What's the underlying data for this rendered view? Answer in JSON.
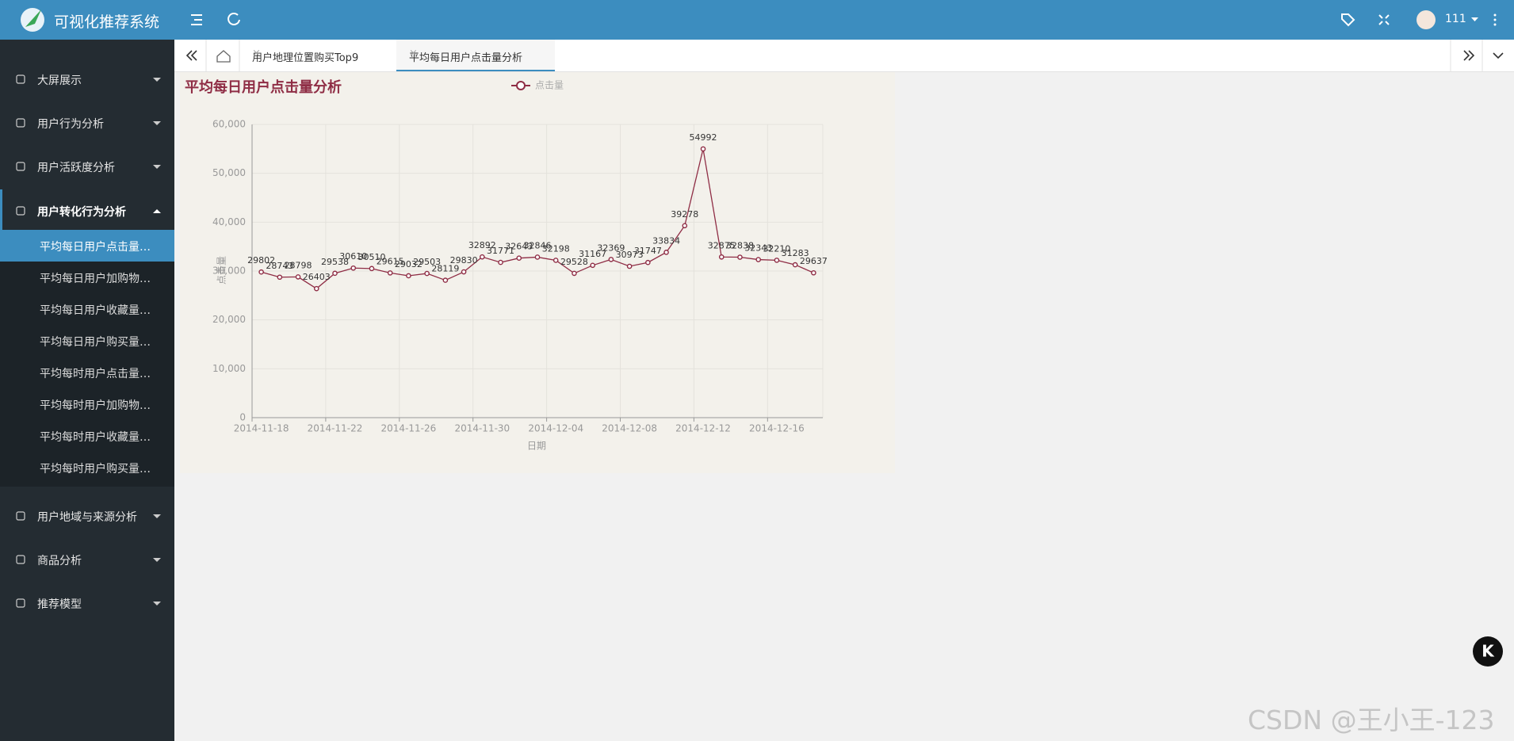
{
  "header": {
    "title": "可视化推荐系统",
    "user": "111"
  },
  "sidebar": {
    "top": [
      "大屏展示",
      "用户行为分析",
      "用户活跃度分析",
      "用户转化行为分析"
    ],
    "submenu": [
      "平均每日用户点击量分析",
      "平均每日用户加购物车量分析",
      "平均每日用户收藏量分析",
      "平均每日用户购买量分析",
      "平均每时用户点击量分析",
      "平均每时用户加购物车量分析",
      "平均每时用户收藏量分析",
      "平均每时用户购买量分析"
    ],
    "bottom": [
      "用户地域与来源分析",
      "商品分析",
      "推荐模型"
    ]
  },
  "tabs": [
    "用户地理位置购买Top9",
    "平均每日用户点击量分析"
  ],
  "watermark": "CSDN @王小王-123",
  "chart_data": {
    "type": "line",
    "title": "平均每日用户点击量分析",
    "x_label": "日期",
    "y_label": "点击量",
    "categories": [
      "2014-11-18",
      null,
      null,
      null,
      "2014-11-22",
      null,
      null,
      null,
      "2014-11-26",
      null,
      null,
      null,
      "2014-11-30",
      null,
      null,
      null,
      "2014-12-04",
      null,
      null,
      null,
      "2014-12-08",
      null,
      null,
      null,
      "2014-12-12",
      null,
      null,
      null,
      "2014-12-16",
      null,
      null
    ],
    "series": [
      {
        "name": "点击量",
        "color": "#8f2d45",
        "values": [
          29802,
          28743,
          28798,
          26403,
          29538,
          30610,
          30510,
          29615,
          29032,
          29503,
          28119,
          29830,
          32892,
          31771,
          32643,
          32846,
          32198,
          29528,
          31167,
          32369,
          30973,
          31747,
          33834,
          39278,
          54992,
          32875,
          32838,
          32343,
          32210,
          31283,
          29637
        ]
      }
    ],
    "ylim": [
      0,
      60000
    ],
    "yticks": [
      0,
      {
        "value": 10000,
        "label": "10,000"
      },
      {
        "value": 20000,
        "label": "20,000"
      },
      {
        "value": 30000,
        "label": "30,000"
      },
      {
        "value": 40000,
        "label": "40,000"
      },
      {
        "value": 50000,
        "label": "50,000"
      },
      {
        "value": 60000,
        "label": "60,000"
      }
    ],
    "grid": true
  }
}
